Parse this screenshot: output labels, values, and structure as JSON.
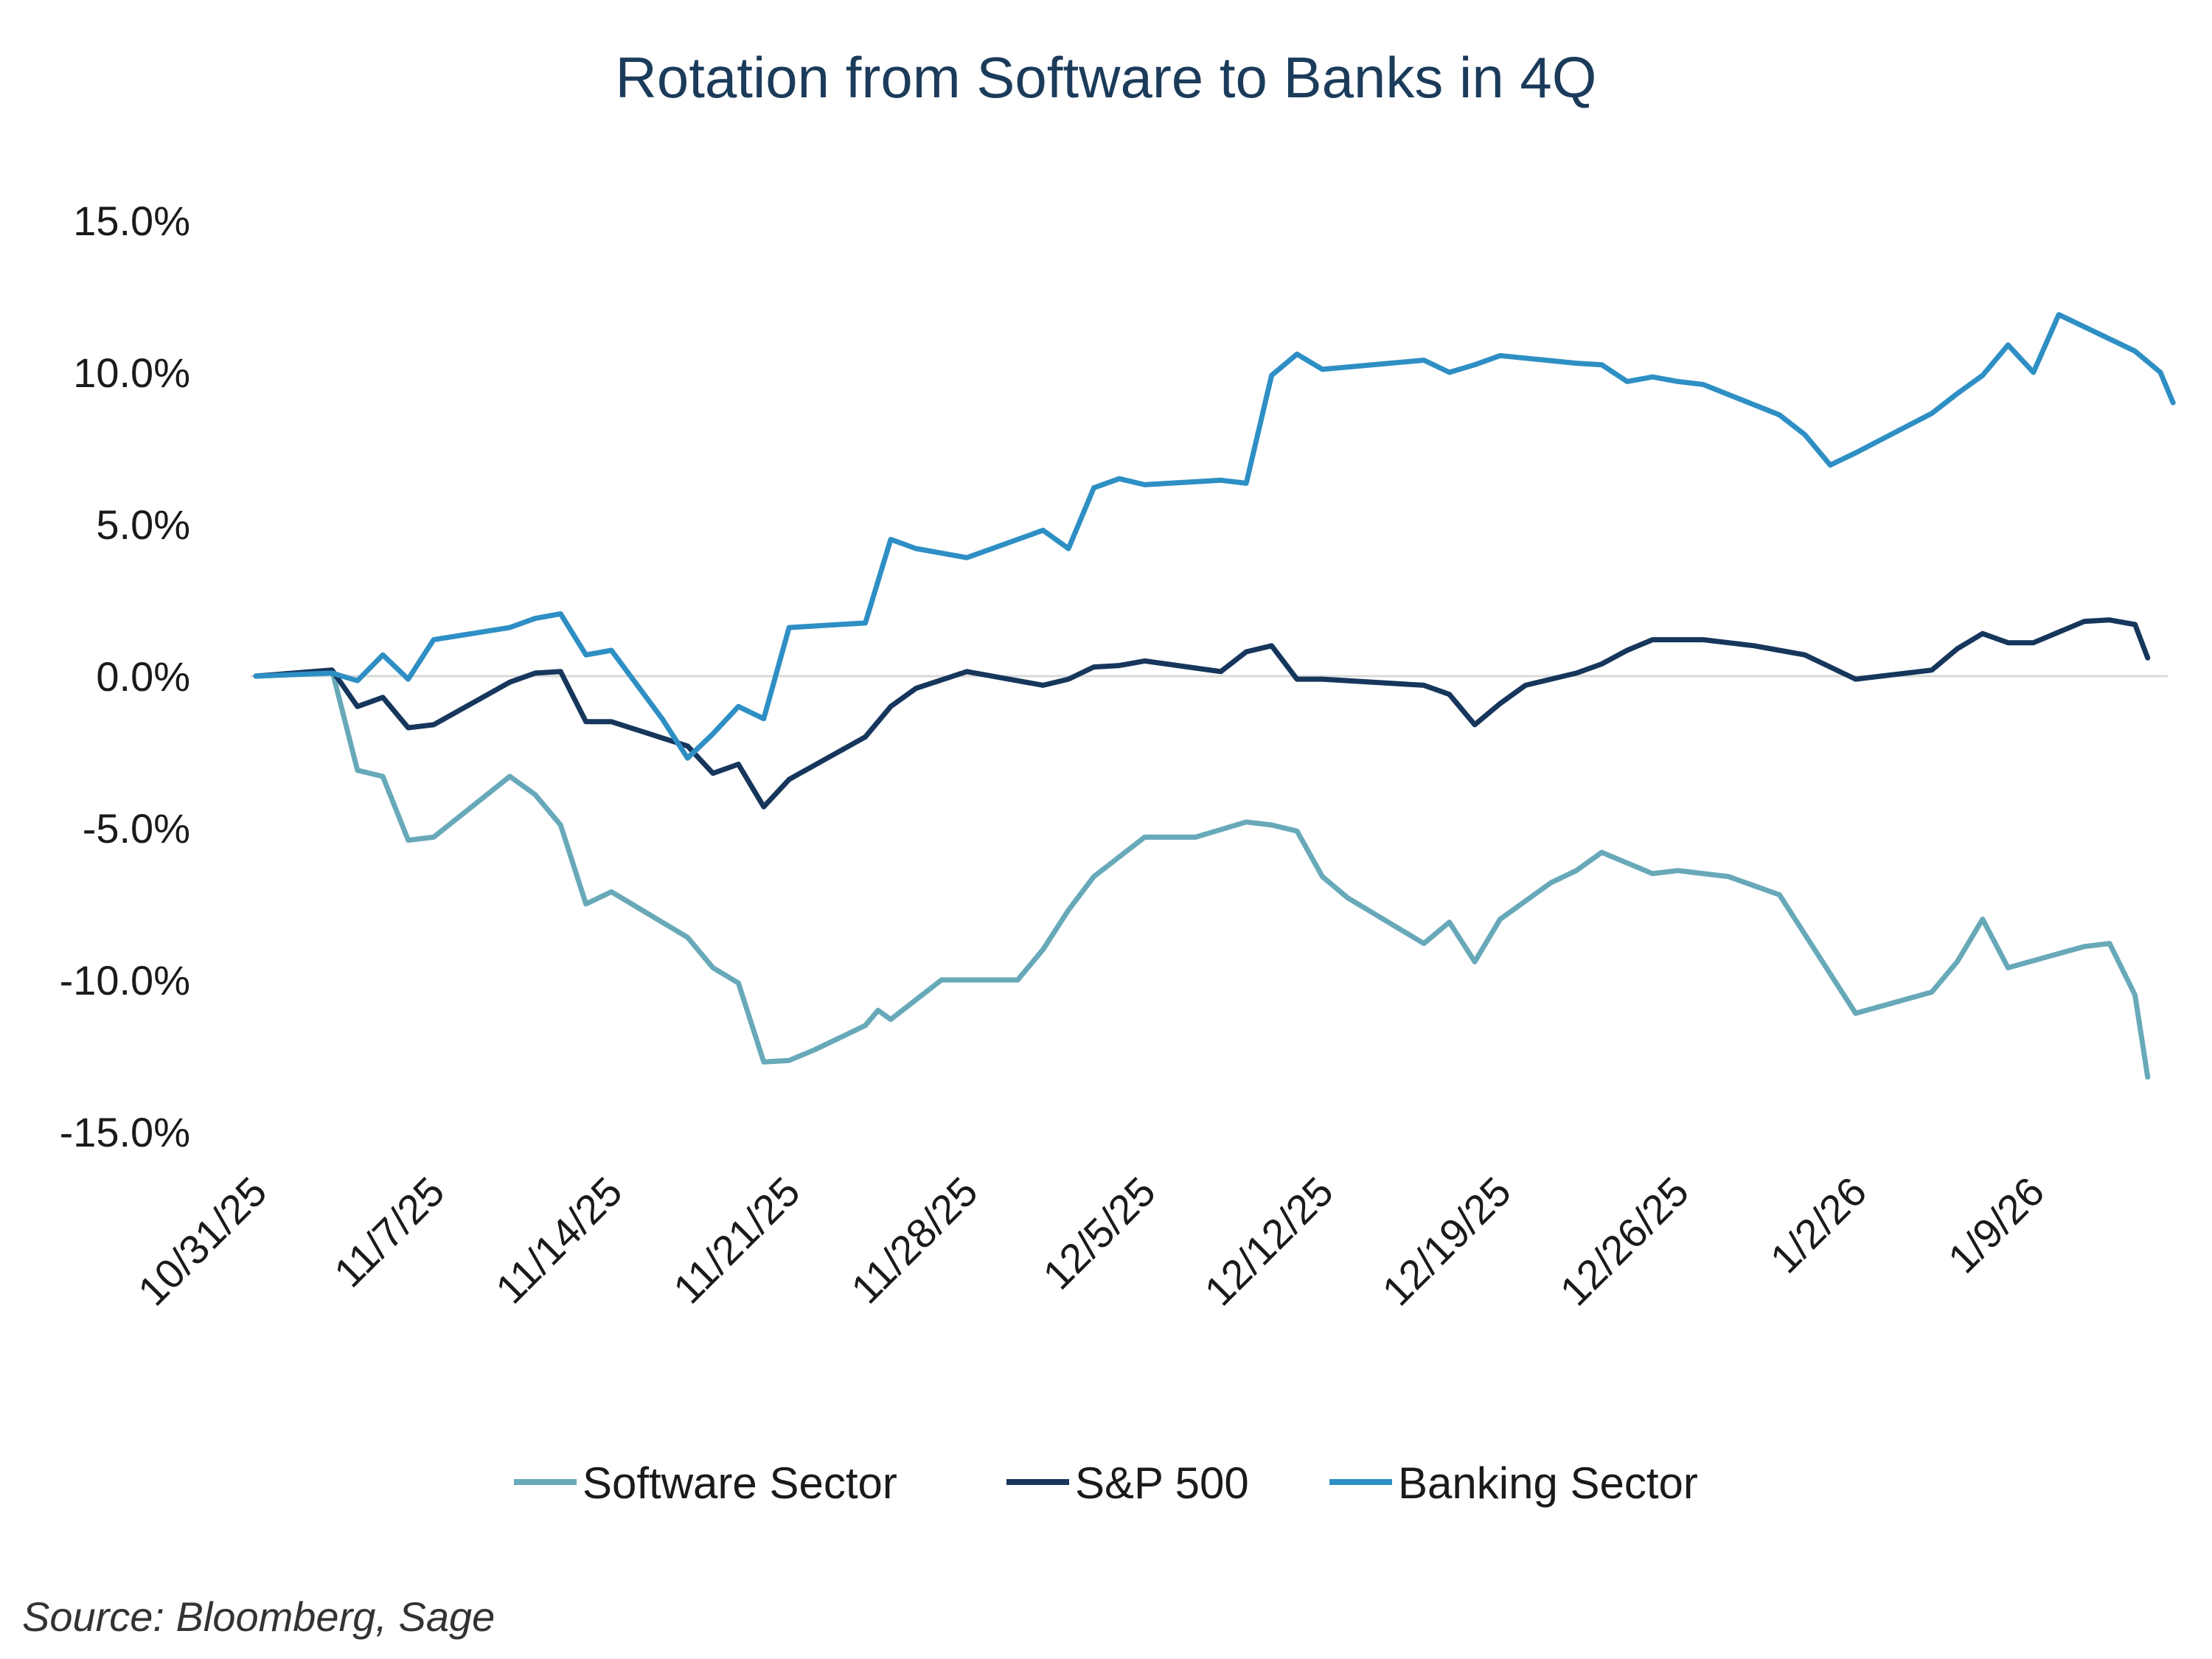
{
  "chart_data": {
    "type": "line",
    "title": "Rotation from Software to Banks in 4Q",
    "xlabel": "",
    "ylabel": "",
    "ylim": [
      -15,
      15
    ],
    "y_ticks": [
      "15.0%",
      "10.0%",
      "5.0%",
      "0.0%",
      "-5.0%",
      "-10.0%",
      "-15.0%"
    ],
    "y_tick_values": [
      15,
      10,
      5,
      0,
      -5,
      -10,
      -15
    ],
    "x_tick_labels": [
      "10/31/25",
      "11/7/25",
      "11/14/25",
      "11/21/25",
      "11/28/25",
      "12/5/25",
      "12/12/25",
      "12/19/25",
      "12/26/25",
      "1/2/26",
      "1/9/26"
    ],
    "x_tick_days": [
      0,
      7,
      14,
      21,
      28,
      35,
      42,
      49,
      56,
      63,
      70
    ],
    "x_range_days": [
      0,
      75
    ],
    "grid": false,
    "legend_position": "bottom",
    "series": [
      {
        "name": "Software Sector",
        "color": "#68a9b9",
        "x": [
          0,
          3,
          4,
          5,
          6,
          7,
          10,
          11,
          12,
          13,
          13.5,
          14,
          17,
          18,
          19,
          20,
          21,
          22,
          24,
          24.5,
          25,
          27,
          28,
          30,
          31,
          32,
          33,
          35,
          36,
          37,
          39,
          40,
          41,
          42,
          43,
          46,
          47,
          48,
          49,
          51,
          52,
          53,
          55,
          56,
          58,
          59,
          60,
          63,
          66,
          67,
          68,
          69,
          72,
          73,
          74,
          74.5
        ],
        "values": [
          0,
          0.2,
          -3.1,
          -3.3,
          -5.4,
          -5.3,
          -3.3,
          -3.9,
          -4.9,
          -7.5,
          -7.3,
          -7.1,
          -8.6,
          -9.6,
          -10.1,
          -12.7,
          -12.65,
          -12.3,
          -11.5,
          -11.0,
          -11.3,
          -10.0,
          -10.0,
          -10.0,
          -9.0,
          -7.7,
          -6.6,
          -5.3,
          -5.3,
          -5.3,
          -4.8,
          -4.9,
          -5.1,
          -6.6,
          -7.3,
          -8.8,
          -8.1,
          -9.4,
          -8.0,
          -6.8,
          -6.4,
          -5.8,
          -6.5,
          -6.4,
          -6.6,
          -6.9,
          -7.2,
          -11.1,
          -10.4,
          -9.4,
          -8.0,
          -9.6,
          -8.9,
          -8.8,
          -10.5,
          -13.2
        ]
      },
      {
        "name": "S&P 500",
        "color": "#16365c",
        "x": [
          0,
          3,
          4,
          5,
          6,
          7,
          10,
          11,
          12,
          13,
          14,
          17,
          18,
          19,
          20,
          21,
          24,
          25,
          26,
          28,
          31,
          32,
          33,
          34,
          35,
          38,
          39,
          40,
          41,
          42,
          46,
          47,
          48,
          49,
          50,
          52,
          53,
          54,
          55,
          56,
          57,
          59,
          60,
          61,
          63,
          66,
          67,
          68,
          69,
          70,
          72,
          73,
          74,
          74.5
        ],
        "values": [
          0,
          0.2,
          -1.0,
          -0.7,
          -1.7,
          -1.6,
          -0.2,
          0.1,
          0.15,
          -1.5,
          -1.5,
          -2.3,
          -3.2,
          -2.9,
          -4.3,
          -3.4,
          -2.0,
          -1.0,
          -0.4,
          0.15,
          -0.3,
          -0.1,
          0.3,
          0.35,
          0.5,
          0.15,
          0.8,
          1.0,
          -0.1,
          -0.1,
          -0.3,
          -0.6,
          -1.6,
          -0.9,
          -0.3,
          0.1,
          0.4,
          0.85,
          1.2,
          1.2,
          1.2,
          1.0,
          0.85,
          0.7,
          -0.1,
          0.2,
          0.9,
          1.4,
          1.1,
          1.1,
          1.8,
          1.85,
          1.7,
          0.6
        ]
      },
      {
        "name": "Banking Sector",
        "color": "#2e8fc4",
        "x": [
          0,
          3,
          4,
          5,
          6,
          7,
          10,
          11,
          12,
          13,
          14,
          16,
          17,
          18,
          19,
          20,
          21,
          24,
          25,
          26,
          28,
          31,
          32,
          33,
          34,
          35,
          38,
          39,
          40,
          41,
          42,
          46,
          47,
          48,
          49,
          52,
          53,
          54,
          55,
          56,
          57,
          60,
          61,
          62,
          63,
          66,
          67,
          68,
          69,
          70,
          71,
          72,
          74,
          75,
          75.5
        ],
        "values": [
          0,
          0.1,
          -0.15,
          0.7,
          -0.1,
          1.2,
          1.6,
          1.9,
          2.05,
          0.7,
          0.85,
          -1.4,
          -2.7,
          -1.9,
          -1.0,
          -1.4,
          1.6,
          1.75,
          4.5,
          4.2,
          3.9,
          4.8,
          4.2,
          6.2,
          6.5,
          6.3,
          6.45,
          6.35,
          9.9,
          10.6,
          10.1,
          10.4,
          10.0,
          10.25,
          10.55,
          10.3,
          10.25,
          9.7,
          9.85,
          9.7,
          9.6,
          8.6,
          7.95,
          6.95,
          7.35,
          8.65,
          9.3,
          9.9,
          10.9,
          10.0,
          11.9,
          11.5,
          10.7,
          10.0,
          9.0
        ]
      }
    ]
  },
  "source": "Source: Bloomberg, Sage"
}
